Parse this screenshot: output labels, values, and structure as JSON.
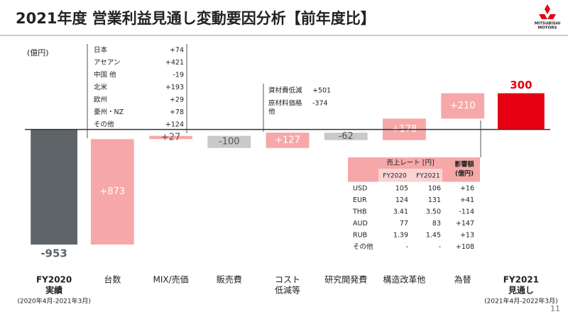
{
  "header": {
    "title": "2021年度 営業利益見通し変動要因分析【前年度比】",
    "logo": [
      "MITSUBISHI",
      "MOTORS"
    ],
    "page_number": "11"
  },
  "chart_data": {
    "type": "waterfall",
    "y_unit": "(億円)",
    "categories": [
      [
        "FY2020",
        "実績"
      ],
      [
        "台数"
      ],
      [
        "MIX/売価"
      ],
      [
        "販売費"
      ],
      [
        "コスト",
        "低減等"
      ],
      [
        "研究開発費"
      ],
      [
        "構造改革他"
      ],
      [
        "為替"
      ],
      [
        "FY2021",
        "見通し"
      ]
    ],
    "start_period": "(2020年4月-2021年3月)",
    "end_period": "(2021年4月-2022年3月)",
    "measure": [
      "absolute",
      "relative",
      "relative",
      "relative",
      "relative",
      "relative",
      "relative",
      "relative",
      "absolute"
    ],
    "values": [
      -953,
      873,
      27,
      -100,
      127,
      -62,
      178,
      210,
      300
    ],
    "value_labels": [
      "-953",
      "+873",
      "+27",
      "-100",
      "+127",
      "-62",
      "+178",
      "+210",
      "300"
    ],
    "colors": [
      "#5f6468",
      "#f6a8a8",
      "#f6a8a8",
      "#c9c9c9",
      "#f6a8a8",
      "#c9c9c9",
      "#f6a8a8",
      "#f6a8a8",
      "#e60012"
    ],
    "ylim": [
      -1100,
      720
    ]
  },
  "unit_breakdown": [
    [
      "日本",
      "+74"
    ],
    [
      "アセアン",
      "+421"
    ],
    [
      "中国 他",
      "-19"
    ],
    [
      "北米",
      "+193"
    ],
    [
      "欧州",
      "+29"
    ],
    [
      "豪州・NZ",
      "+78"
    ],
    [
      "その他",
      "+124"
    ]
  ],
  "cost_breakdown": [
    [
      [
        "資材費低減"
      ],
      "+501"
    ],
    [
      [
        "原材料価格",
        "他"
      ],
      "-374"
    ]
  ],
  "fx_table": {
    "header": "売上レート [円]",
    "columns": [
      "FY2020",
      "FY2021"
    ],
    "impact_header": [
      "影響額",
      "(億円)"
    ],
    "rows": [
      [
        "USD",
        "105",
        "106",
        "+16"
      ],
      [
        "EUR",
        "124",
        "131",
        "+41"
      ],
      [
        "THB",
        "3.41",
        "3.50",
        "-114"
      ],
      [
        "AUD",
        "77",
        "83",
        "+147"
      ],
      [
        "RUB",
        "1.39",
        "1.45",
        "+13"
      ],
      [
        "その他",
        "-",
        "-",
        "+108"
      ]
    ]
  }
}
